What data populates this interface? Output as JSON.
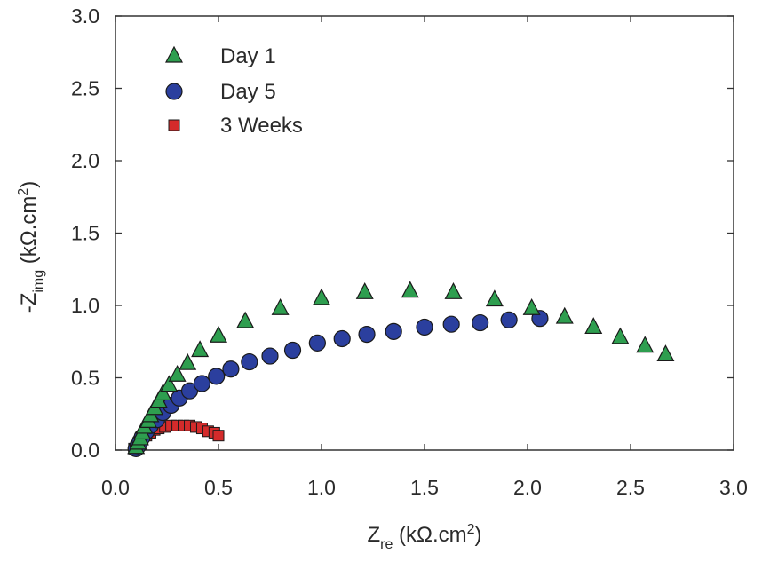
{
  "chart_data": {
    "type": "scatter",
    "xlabel": {
      "main": "Z",
      "sub": "re",
      "unit": " (kΩ.cm",
      "sup": "2",
      "close": ")"
    },
    "ylabel": {
      "main": "-Z",
      "sub": "img",
      "unit": " (kΩ.cm",
      "sup": "2",
      "close": ")"
    },
    "xlim": [
      0.0,
      3.0
    ],
    "ylim": [
      0.0,
      3.0
    ],
    "xticks": [
      "0.0",
      "0.5",
      "1.0",
      "1.5",
      "2.0",
      "2.5",
      "3.0"
    ],
    "yticks": [
      "0.0",
      "0.5",
      "1.0",
      "1.5",
      "2.0",
      "2.5",
      "3.0"
    ],
    "grid": false,
    "legend_position": "top-left",
    "series": [
      {
        "name": "Day 1",
        "marker": "triangle",
        "color": "#2e9e4f",
        "points": [
          [
            0.1,
            0.02
          ],
          [
            0.11,
            0.05
          ],
          [
            0.12,
            0.08
          ],
          [
            0.13,
            0.12
          ],
          [
            0.14,
            0.16
          ],
          [
            0.16,
            0.2
          ],
          [
            0.17,
            0.24
          ],
          [
            0.19,
            0.29
          ],
          [
            0.21,
            0.34
          ],
          [
            0.23,
            0.39
          ],
          [
            0.26,
            0.45
          ],
          [
            0.3,
            0.52
          ],
          [
            0.35,
            0.6
          ],
          [
            0.41,
            0.69
          ],
          [
            0.5,
            0.79
          ],
          [
            0.63,
            0.89
          ],
          [
            0.8,
            0.98
          ],
          [
            1.0,
            1.05
          ],
          [
            1.21,
            1.09
          ],
          [
            1.43,
            1.1
          ],
          [
            1.64,
            1.09
          ],
          [
            1.84,
            1.04
          ],
          [
            2.02,
            0.98
          ],
          [
            2.18,
            0.92
          ],
          [
            2.32,
            0.85
          ],
          [
            2.45,
            0.78
          ],
          [
            2.57,
            0.72
          ],
          [
            2.67,
            0.66
          ]
        ]
      },
      {
        "name": "Day 5",
        "marker": "circle",
        "color": "#2b3f9e",
        "points": [
          [
            0.1,
            0.01
          ],
          [
            0.11,
            0.03
          ],
          [
            0.12,
            0.06
          ],
          [
            0.13,
            0.09
          ],
          [
            0.15,
            0.13
          ],
          [
            0.17,
            0.17
          ],
          [
            0.2,
            0.21
          ],
          [
            0.23,
            0.26
          ],
          [
            0.27,
            0.31
          ],
          [
            0.31,
            0.36
          ],
          [
            0.36,
            0.41
          ],
          [
            0.42,
            0.46
          ],
          [
            0.49,
            0.51
          ],
          [
            0.56,
            0.56
          ],
          [
            0.65,
            0.61
          ],
          [
            0.75,
            0.65
          ],
          [
            0.86,
            0.69
          ],
          [
            0.98,
            0.74
          ],
          [
            1.1,
            0.77
          ],
          [
            1.22,
            0.8
          ],
          [
            1.35,
            0.82
          ],
          [
            1.5,
            0.85
          ],
          [
            1.63,
            0.87
          ],
          [
            1.77,
            0.88
          ],
          [
            1.91,
            0.9
          ],
          [
            2.06,
            0.91
          ]
        ]
      },
      {
        "name": "3 Weeks",
        "marker": "square",
        "color": "#d42b2b",
        "points": [
          [
            0.09,
            0.01
          ],
          [
            0.1,
            0.02
          ],
          [
            0.11,
            0.04
          ],
          [
            0.12,
            0.06
          ],
          [
            0.13,
            0.08
          ],
          [
            0.15,
            0.1
          ],
          [
            0.17,
            0.12
          ],
          [
            0.19,
            0.14
          ],
          [
            0.21,
            0.15
          ],
          [
            0.24,
            0.16
          ],
          [
            0.27,
            0.17
          ],
          [
            0.3,
            0.17
          ],
          [
            0.33,
            0.17
          ],
          [
            0.36,
            0.17
          ],
          [
            0.39,
            0.16
          ],
          [
            0.42,
            0.15
          ],
          [
            0.45,
            0.13
          ],
          [
            0.48,
            0.12
          ],
          [
            0.5,
            0.1
          ]
        ]
      }
    ]
  }
}
